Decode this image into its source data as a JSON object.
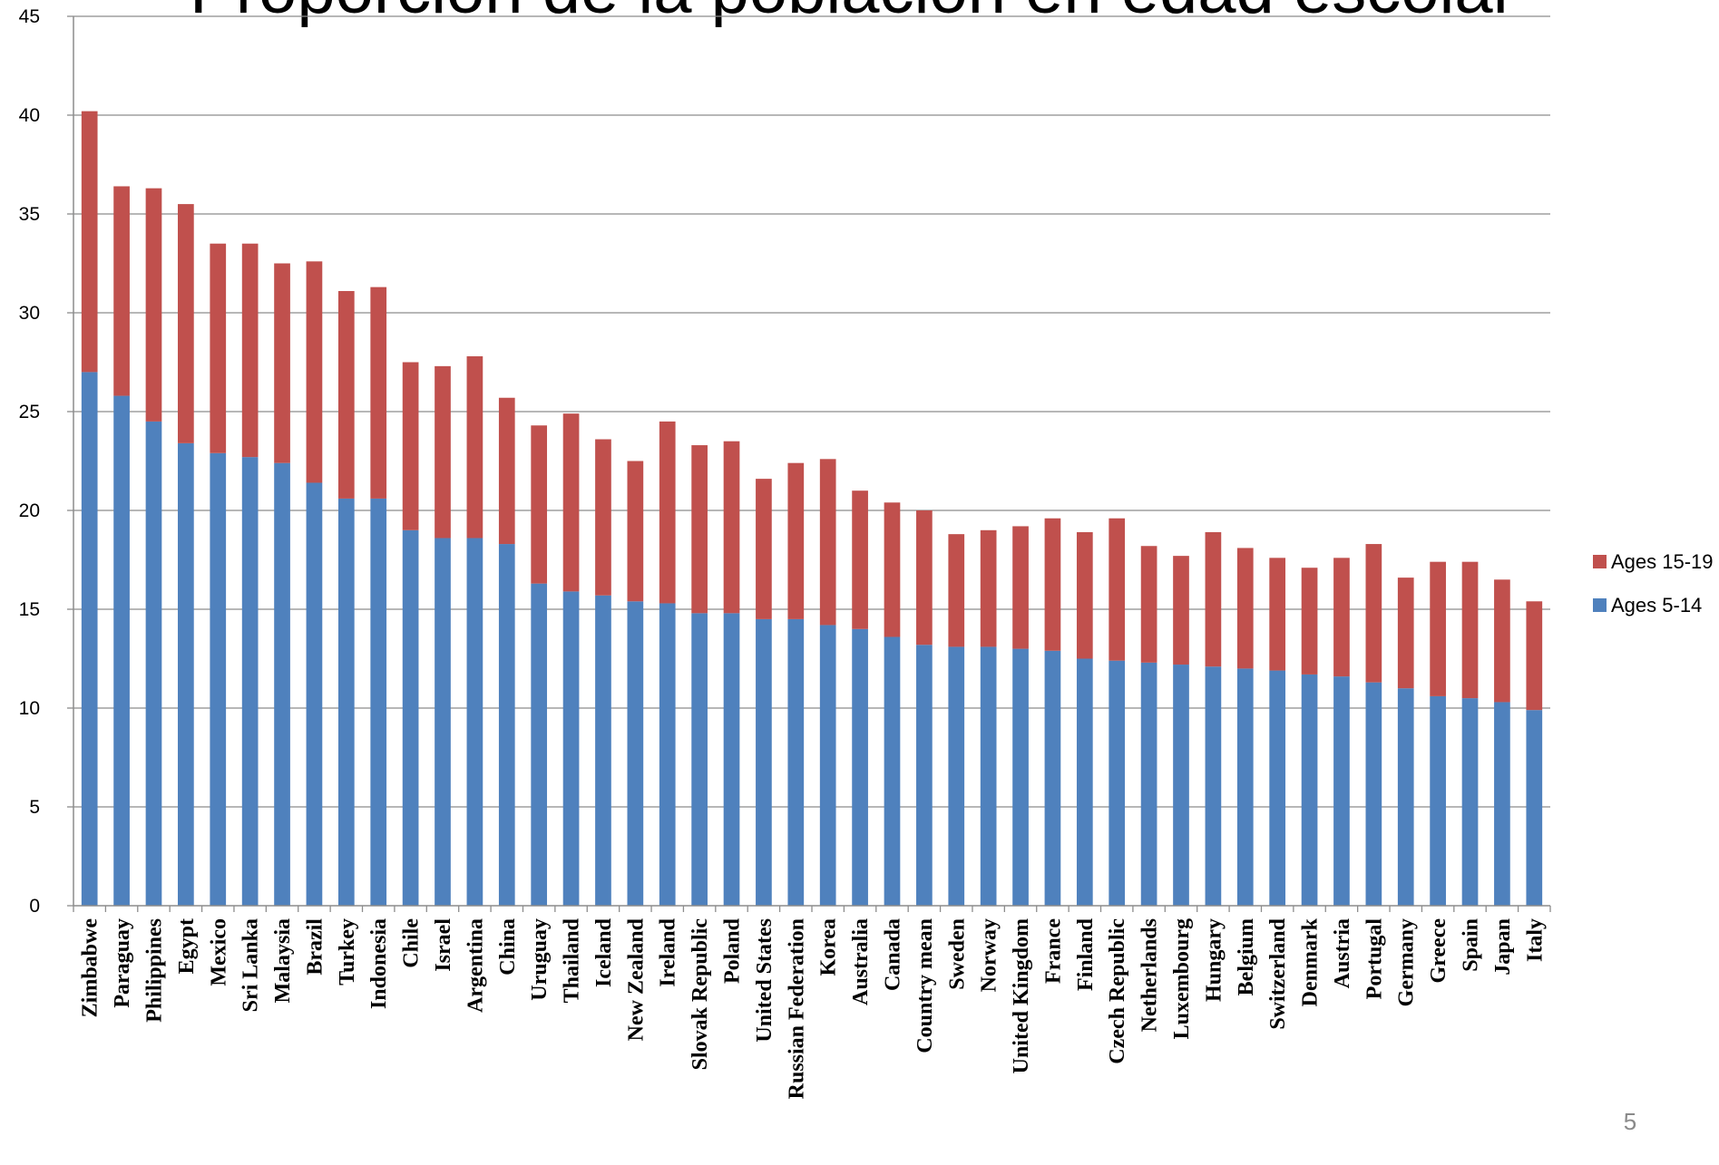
{
  "slide": {
    "title": "Proporción de la población en edad escolar",
    "page_number": "5"
  },
  "chart_data": {
    "type": "bar",
    "stacked": true,
    "title": "",
    "xlabel": "",
    "ylabel": "",
    "ylim": [
      0,
      45
    ],
    "yticks": [
      0,
      5,
      10,
      15,
      20,
      25,
      30,
      35,
      40,
      45
    ],
    "grid": true,
    "legend_position": "right",
    "categories": [
      "Zimbabwe",
      "Paraguay",
      "Philippines",
      "Egypt",
      "Mexico",
      "Sri Lanka",
      "Malaysia",
      "Brazil",
      "Turkey",
      "Indonesia",
      "Chile",
      "Israel",
      "Argentina",
      "China",
      "Uruguay",
      "Thailand",
      "Iceland",
      "New Zealand",
      "Ireland",
      "Slovak Republic",
      "Poland",
      "United States",
      "Russian Federation",
      "Korea",
      "Australia",
      "Canada",
      "Country mean",
      "Sweden",
      "Norway",
      "United Kingdom",
      "France",
      "Finland",
      "Czech Republic",
      "Netherlands",
      "Luxembourg",
      "Hungary",
      "Belgium",
      "Switzerland",
      "Denmark",
      "Austria",
      "Portugal",
      "Germany",
      "Greece",
      "Spain",
      "Japan",
      "Italy"
    ],
    "series": [
      {
        "name": "Ages 5-14",
        "color": "#4F81BD",
        "values": [
          27.0,
          25.8,
          24.5,
          23.4,
          22.9,
          22.7,
          22.4,
          21.4,
          20.6,
          20.6,
          19.0,
          18.6,
          18.6,
          18.3,
          16.3,
          15.9,
          15.7,
          15.4,
          15.3,
          14.8,
          14.8,
          14.5,
          14.5,
          14.2,
          14.0,
          13.6,
          13.2,
          13.1,
          13.1,
          13.0,
          12.9,
          12.5,
          12.4,
          12.3,
          12.2,
          12.1,
          12.0,
          11.9,
          11.7,
          11.6,
          11.3,
          11.0,
          10.6,
          10.5,
          10.3,
          9.9
        ]
      },
      {
        "name": "Ages 15-19",
        "color": "#C0504D",
        "values": [
          13.2,
          10.6,
          11.8,
          12.1,
          10.6,
          10.8,
          10.1,
          11.2,
          10.5,
          10.7,
          8.5,
          8.7,
          9.2,
          7.4,
          8.0,
          9.0,
          7.9,
          7.1,
          9.2,
          8.5,
          8.7,
          7.1,
          7.9,
          8.4,
          7.0,
          6.8,
          6.8,
          5.7,
          5.9,
          6.2,
          6.7,
          6.4,
          7.2,
          5.9,
          5.5,
          6.8,
          6.1,
          5.7,
          5.4,
          6.0,
          7.0,
          5.6,
          6.8,
          6.9,
          6.2,
          5.5
        ]
      }
    ]
  }
}
